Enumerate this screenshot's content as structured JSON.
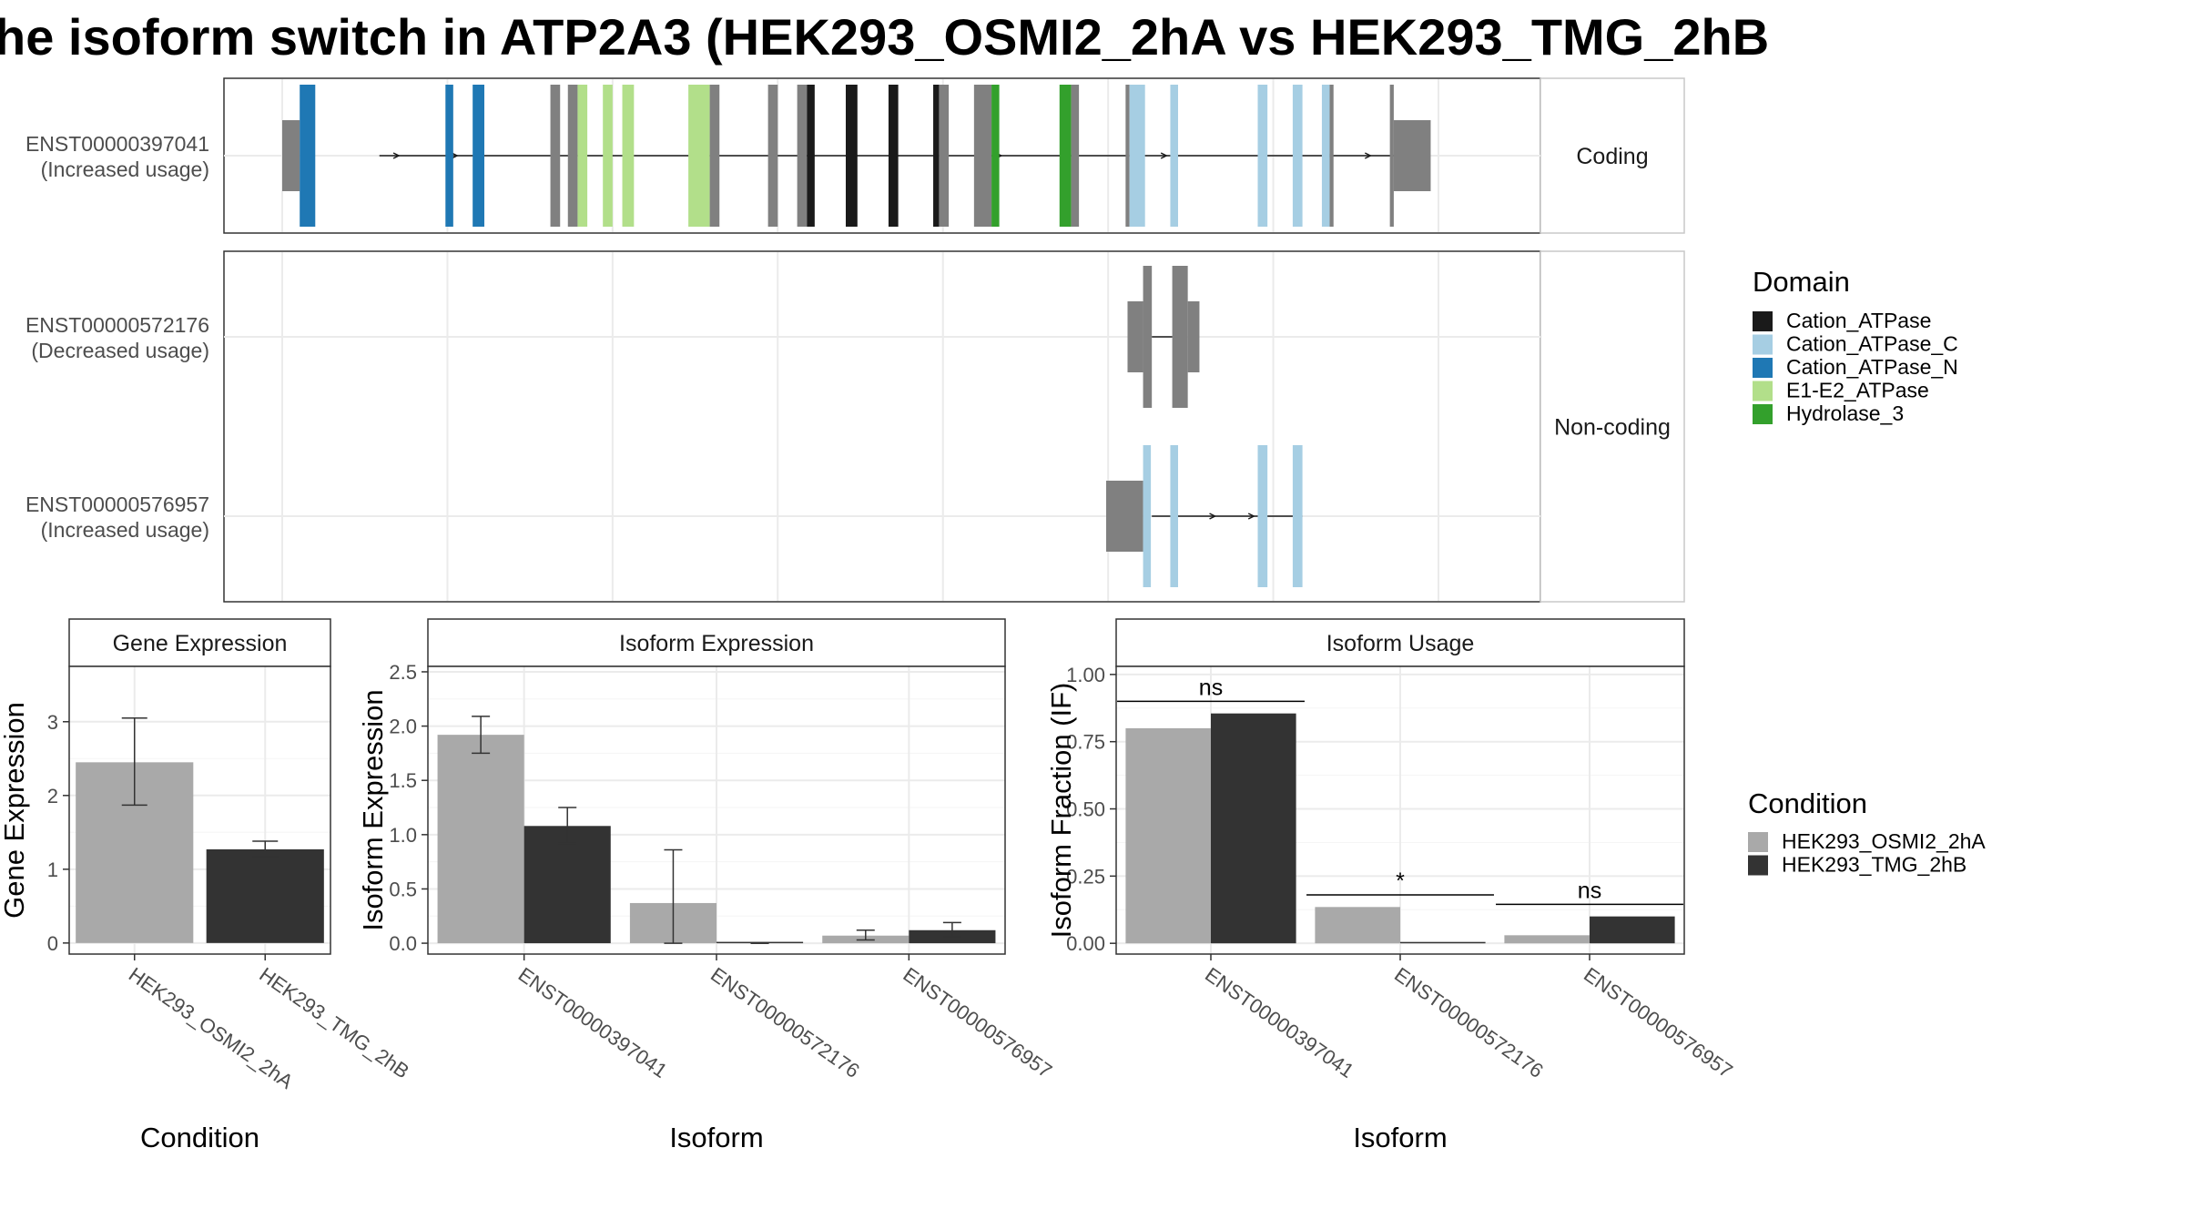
{
  "title": "he isoform switch in ATP2A3 (HEK293_OSMI2_2hA vs HEK293_TMG_2hB",
  "colors": {
    "condA": "#a9a9a9",
    "condB": "#333333",
    "utr": "#808080",
    "grid": "#ebebeb",
    "panel_border": "#333333",
    "strip_border": "#c8c8c8",
    "domains": {
      "Cation_ATPase": "#1a1a1a",
      "Cation_ATPase_C": "#a6cee3",
      "Cation_ATPase_N": "#1f78b4",
      "E1-E2_ATPase": "#b2df8a",
      "Hydrolase_3": "#33a02c",
      "none": "#808080"
    }
  },
  "transcripts": {
    "coding_strip": "Coding",
    "noncoding_strip": "Non-coding",
    "items": [
      {
        "id": "ENST00000397041",
        "usage": "(Increased usage)",
        "group": "coding",
        "arrows": [
          0.12,
          0.18,
          0.72,
          0.74,
          0.91,
          1.08,
          1.12
        ],
        "line": [
          0.1,
          1.18
        ],
        "exons": [
          {
            "s": 0.0,
            "e": 0.018,
            "h": "s",
            "d": "none"
          },
          {
            "s": 0.018,
            "e": 0.034,
            "h": "t",
            "d": "Cation_ATPase_N"
          },
          {
            "s": 0.168,
            "e": 0.176,
            "h": "t",
            "d": "Cation_ATPase_N"
          },
          {
            "s": 0.196,
            "e": 0.208,
            "h": "t",
            "d": "Cation_ATPase_N"
          },
          {
            "s": 0.276,
            "e": 0.286,
            "h": "t",
            "d": "none"
          },
          {
            "s": 0.294,
            "e": 0.304,
            "h": "t",
            "d": "none"
          },
          {
            "s": 0.304,
            "e": 0.314,
            "h": "t",
            "d": "E1-E2_ATPase"
          },
          {
            "s": 0.33,
            "e": 0.34,
            "h": "t",
            "d": "E1-E2_ATPase"
          },
          {
            "s": 0.35,
            "e": 0.362,
            "h": "t",
            "d": "E1-E2_ATPase"
          },
          {
            "s": 0.418,
            "e": 0.44,
            "h": "t",
            "d": "E1-E2_ATPase"
          },
          {
            "s": 0.44,
            "e": 0.45,
            "h": "t",
            "d": "none"
          },
          {
            "s": 0.5,
            "e": 0.51,
            "h": "t",
            "d": "none"
          },
          {
            "s": 0.53,
            "e": 0.54,
            "h": "t",
            "d": "none"
          },
          {
            "s": 0.54,
            "e": 0.548,
            "h": "t",
            "d": "Cation_ATPase"
          },
          {
            "s": 0.58,
            "e": 0.592,
            "h": "t",
            "d": "Cation_ATPase"
          },
          {
            "s": 0.624,
            "e": 0.634,
            "h": "t",
            "d": "Cation_ATPase"
          },
          {
            "s": 0.67,
            "e": 0.676,
            "h": "t",
            "d": "Cation_ATPase"
          },
          {
            "s": 0.676,
            "e": 0.686,
            "h": "t",
            "d": "none"
          },
          {
            "s": 0.712,
            "e": 0.73,
            "h": "t",
            "d": "none"
          },
          {
            "s": 0.73,
            "e": 0.738,
            "h": "t",
            "d": "Hydrolase_3"
          },
          {
            "s": 0.8,
            "e": 0.812,
            "h": "t",
            "d": "Hydrolase_3"
          },
          {
            "s": 0.812,
            "e": 0.82,
            "h": "t",
            "d": "none"
          },
          {
            "s": 0.868,
            "e": 0.872,
            "h": "t",
            "d": "none"
          },
          {
            "s": 0.872,
            "e": 0.888,
            "h": "t",
            "d": "Cation_ATPase_C"
          },
          {
            "s": 0.914,
            "e": 0.922,
            "h": "t",
            "d": "Cation_ATPase_C"
          },
          {
            "s": 1.004,
            "e": 1.014,
            "h": "t",
            "d": "Cation_ATPase_C"
          },
          {
            "s": 1.04,
            "e": 1.05,
            "h": "t",
            "d": "Cation_ATPase_C"
          },
          {
            "s": 1.07,
            "e": 1.078,
            "h": "t",
            "d": "Cation_ATPase_C"
          },
          {
            "s": 1.078,
            "e": 1.082,
            "h": "t",
            "d": "none"
          },
          {
            "s": 1.14,
            "e": 1.144,
            "h": "t",
            "d": "none"
          },
          {
            "s": 1.144,
            "e": 1.182,
            "h": "s",
            "d": "none"
          }
        ]
      },
      {
        "id": "ENST00000572176",
        "usage": "(Decreased usage)",
        "group": "noncoding",
        "arrows": [],
        "line": [
          0.895,
          0.916
        ],
        "exons": [
          {
            "s": 0.87,
            "e": 0.886,
            "h": "s",
            "d": "none"
          },
          {
            "s": 0.886,
            "e": 0.895,
            "h": "t",
            "d": "none"
          },
          {
            "s": 0.916,
            "e": 0.932,
            "h": "t",
            "d": "none"
          },
          {
            "s": 0.932,
            "e": 0.944,
            "h": "s",
            "d": "none"
          }
        ]
      },
      {
        "id": "ENST00000576957",
        "usage": "(Increased usage)",
        "group": "noncoding",
        "arrows": [
          0.96,
          1.0
        ],
        "line": [
          0.895,
          1.05
        ],
        "exons": [
          {
            "s": 0.848,
            "e": 0.886,
            "h": "s",
            "d": "none"
          },
          {
            "s": 0.886,
            "e": 0.894,
            "h": "t",
            "d": "Cation_ATPase_C"
          },
          {
            "s": 0.914,
            "e": 0.922,
            "h": "t",
            "d": "Cation_ATPase_C"
          },
          {
            "s": 1.004,
            "e": 1.014,
            "h": "t",
            "d": "Cation_ATPase_C"
          },
          {
            "s": 1.04,
            "e": 1.05,
            "h": "t",
            "d": "Cation_ATPase_C"
          }
        ]
      }
    ]
  },
  "domain_legend": {
    "title": "Domain",
    "items": [
      "Cation_ATPase",
      "Cation_ATPase_C",
      "Cation_ATPase_N",
      "E1-E2_ATPase",
      "Hydrolase_3"
    ]
  },
  "condition_legend": {
    "title": "Condition",
    "items": [
      "HEK293_OSMI2_2hA",
      "HEK293_TMG_2hB"
    ]
  },
  "chart_data": [
    {
      "type": "bar",
      "title": "Gene Expression",
      "xlabel": "Condition",
      "ylabel": "Gene Expression",
      "categories": [
        "HEK293_OSMI2_2hA",
        "HEK293_TMG_2hB"
      ],
      "values": [
        2.45,
        1.27
      ],
      "err_low": [
        1.87,
        1.17
      ],
      "err_high": [
        3.05,
        1.38
      ],
      "ylim": [
        -0.15,
        3.75
      ],
      "yticks": [
        "0",
        "1",
        "2",
        "3"
      ],
      "ytick_values": [
        0,
        1,
        2,
        3
      ]
    },
    {
      "type": "bar",
      "title": "Isoform Expression",
      "xlabel": "Isoform",
      "ylabel": "Isoform Expression",
      "categories": [
        "ENST00000397041",
        "ENST00000572176",
        "ENST00000576957"
      ],
      "series": [
        {
          "name": "HEK293_OSMI2_2hA",
          "values": [
            1.92,
            0.37,
            0.07
          ],
          "err_low": [
            1.75,
            0.0,
            0.03
          ],
          "err_high": [
            2.09,
            0.86,
            0.12
          ]
        },
        {
          "name": "HEK293_TMG_2hB",
          "values": [
            1.08,
            0.0,
            0.12
          ],
          "err_low": [
            0.92,
            0.0,
            0.06
          ],
          "err_high": [
            1.25,
            0.0,
            0.19
          ]
        }
      ],
      "ylim": [
        -0.1,
        2.55
      ],
      "yticks": [
        "0.0",
        "0.5",
        "1.0",
        "1.5",
        "2.0",
        "2.5"
      ],
      "ytick_values": [
        0,
        0.5,
        1.0,
        1.5,
        2.0,
        2.5
      ]
    },
    {
      "type": "bar",
      "title": "Isoform Usage",
      "xlabel": "Isoform",
      "ylabel": "Isoform Fraction (IF)",
      "categories": [
        "ENST00000397041",
        "ENST00000572176",
        "ENST00000576957"
      ],
      "series": [
        {
          "name": "HEK293_OSMI2_2hA",
          "values": [
            0.8,
            0.135,
            0.03
          ]
        },
        {
          "name": "HEK293_TMG_2hB",
          "values": [
            0.855,
            0.0,
            0.1
          ]
        }
      ],
      "significance": [
        "ns",
        "*",
        "ns"
      ],
      "sig_level": [
        0.9,
        0.18,
        0.145
      ],
      "ylim": [
        -0.04,
        1.03
      ],
      "yticks": [
        "0.00",
        "0.25",
        "0.50",
        "0.75",
        "1.00"
      ],
      "ytick_values": [
        0,
        0.25,
        0.5,
        0.75,
        1.0
      ]
    }
  ]
}
